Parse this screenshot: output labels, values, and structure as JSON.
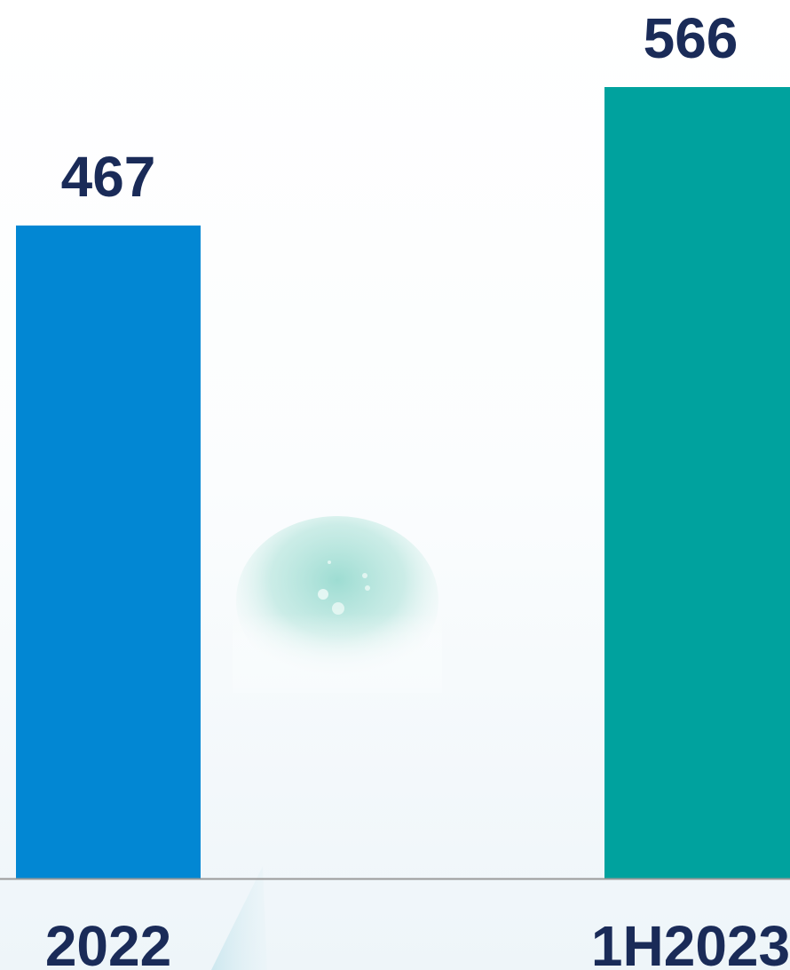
{
  "chart_data": {
    "type": "bar",
    "categories": [
      "2022",
      "1H2023"
    ],
    "values": [
      467,
      566
    ],
    "value_labels": [
      "467",
      "566"
    ],
    "title": "",
    "xlabel": "",
    "ylabel": "",
    "ylim": [
      0,
      566
    ],
    "grid": false,
    "colors": {
      "bars": [
        "#0287d3",
        "#00a29e"
      ],
      "label_text": "#1a2b58",
      "axis_line": "#999999"
    }
  }
}
